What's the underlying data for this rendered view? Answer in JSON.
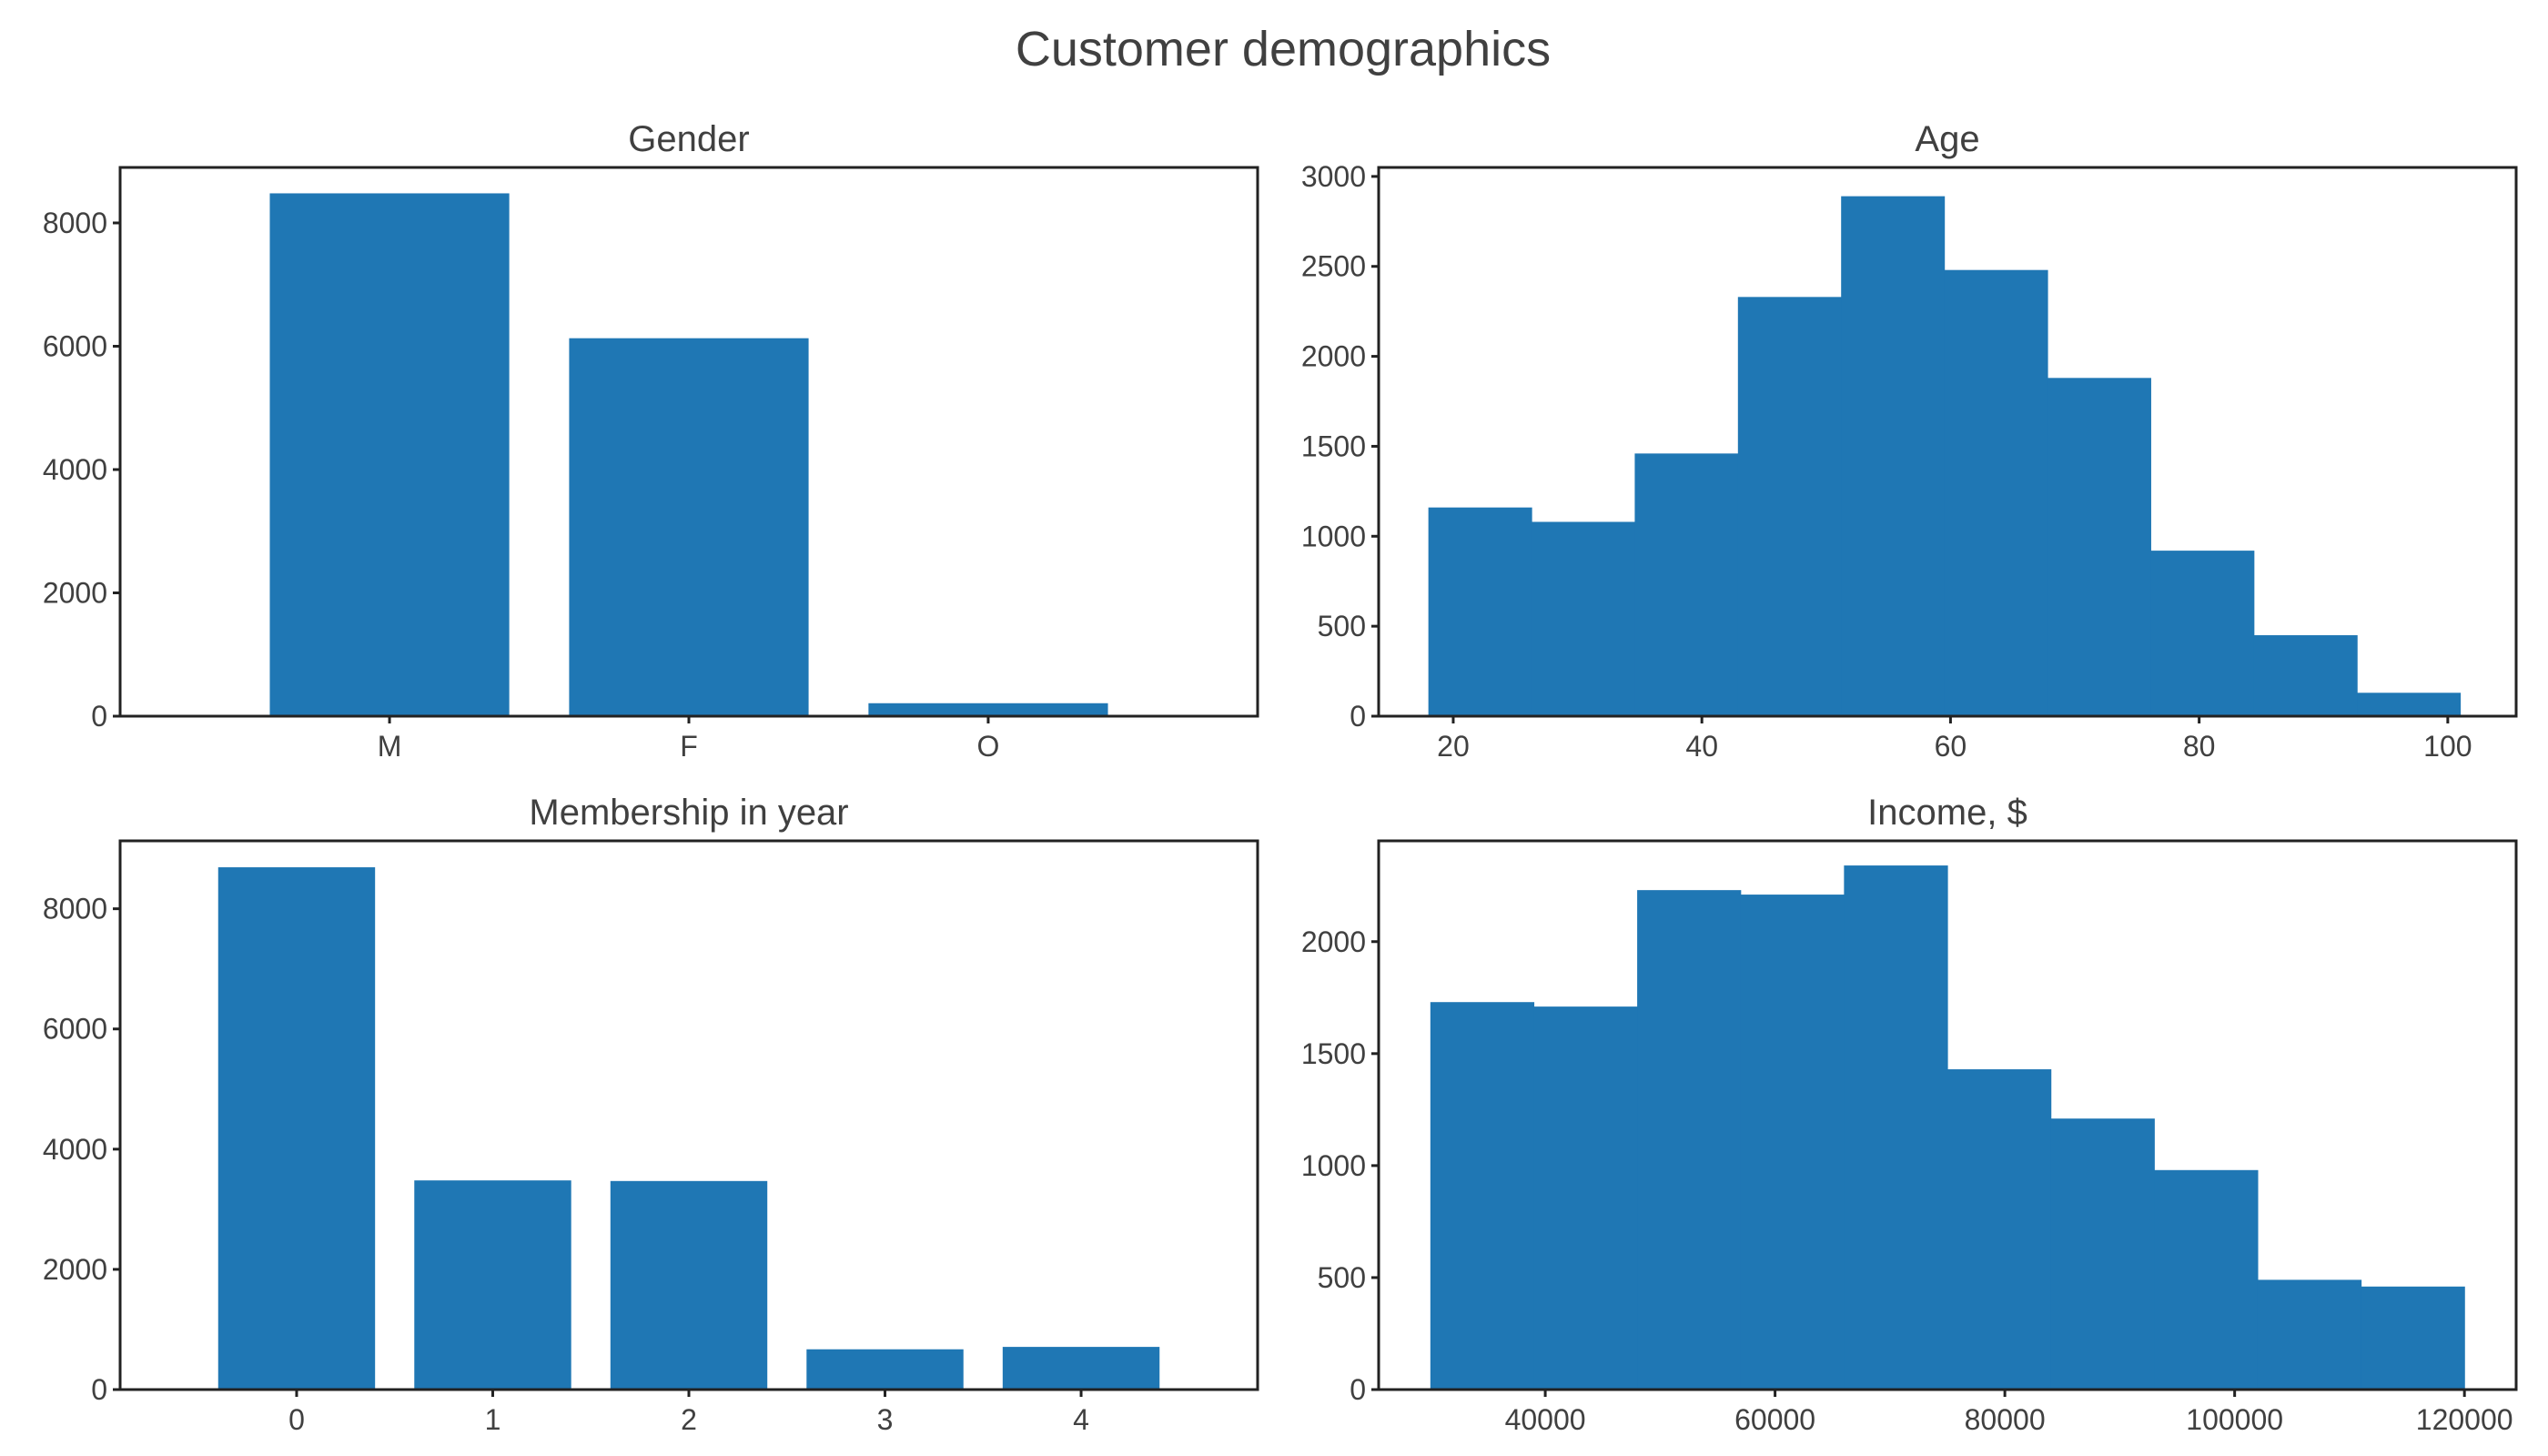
{
  "figure": {
    "title": "Customer demographics"
  },
  "colors": {
    "bar": "#1f77b4"
  },
  "chart_data": [
    {
      "id": "gender",
      "type": "bar",
      "title": "Gender",
      "categories": [
        "M",
        "F",
        "O"
      ],
      "values": [
        8480,
        6130,
        210
      ],
      "ylim": [
        0,
        8900
      ],
      "yticks": [
        0,
        2000,
        4000,
        6000,
        8000
      ],
      "xlabel": "",
      "ylabel": "",
      "grid": false
    },
    {
      "id": "age",
      "type": "bar",
      "subtype": "histogram",
      "title": "Age",
      "bin_edges": [
        18,
        26.3,
        34.6,
        42.9,
        51.2,
        59.5,
        67.8,
        76.1,
        84.4,
        92.7,
        101
      ],
      "values": [
        1160,
        1080,
        1460,
        2330,
        2890,
        2480,
        1880,
        920,
        450,
        130
      ],
      "xlim": [
        14,
        105.5
      ],
      "ylim": [
        0,
        3050
      ],
      "xticks": [
        20,
        40,
        60,
        80,
        100
      ],
      "yticks": [
        0,
        500,
        1000,
        1500,
        2000,
        2500,
        3000
      ],
      "xlabel": "",
      "ylabel": "",
      "grid": false
    },
    {
      "id": "membership",
      "type": "bar",
      "title": "Membership in year",
      "categories": [
        "0",
        "1",
        "2",
        "3",
        "4"
      ],
      "values": [
        8690,
        3480,
        3470,
        670,
        710
      ],
      "ylim": [
        0,
        9130
      ],
      "yticks": [
        0,
        2000,
        4000,
        6000,
        8000
      ],
      "xlabel": "",
      "ylabel": "",
      "grid": false
    },
    {
      "id": "income",
      "type": "bar",
      "subtype": "histogram",
      "title": "Income, $",
      "bin_edges": [
        30000,
        39000,
        48000,
        57000,
        66000,
        75000,
        84000,
        93000,
        102000,
        111000,
        120000
      ],
      "values": [
        1730,
        1710,
        2230,
        2210,
        2340,
        1430,
        1210,
        980,
        490,
        460
      ],
      "xlim": [
        25500,
        124500
      ],
      "ylim": [
        0,
        2450
      ],
      "xticks": [
        40000,
        60000,
        80000,
        100000,
        120000
      ],
      "yticks": [
        0,
        500,
        1000,
        1500,
        2000
      ],
      "xlabel": "",
      "ylabel": "",
      "grid": false
    }
  ]
}
